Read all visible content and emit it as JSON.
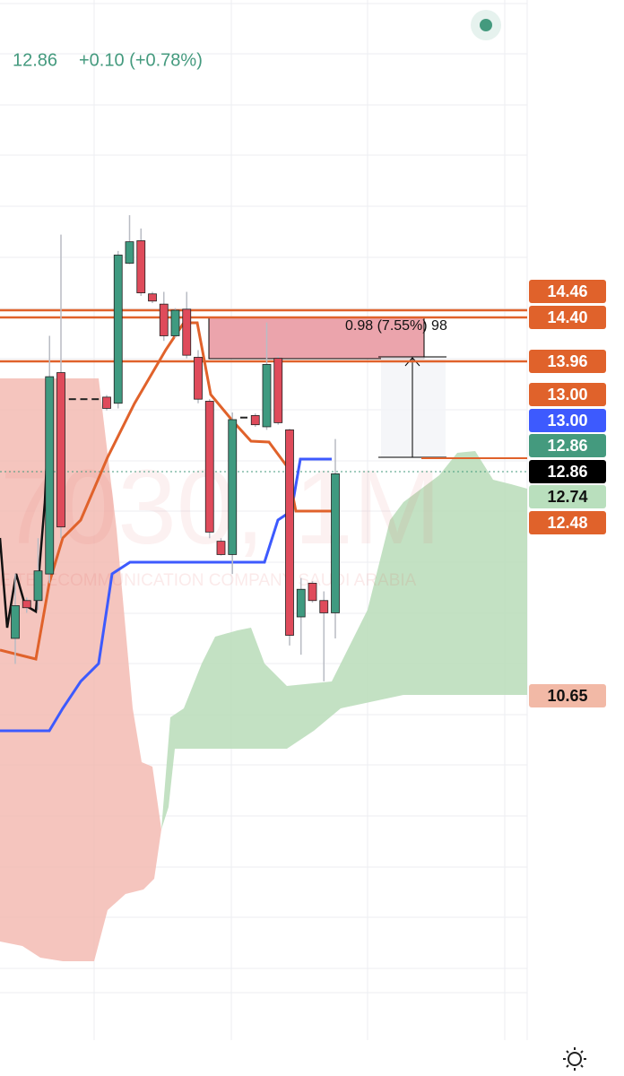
{
  "header": {
    "price": "12.86",
    "change": "+0.10 (+0.78%)"
  },
  "watermark": {
    "symbol": "7030, 1M",
    "company": "MOBILE TELECOMMUNICATION COMPANY SAUDI ARABIA"
  },
  "measure": {
    "label": "0.98 (7.55%) 98"
  },
  "price_labels": [
    {
      "label": "14.46",
      "color": "#e0622b"
    },
    {
      "label": "14.40",
      "color": "#e0622b"
    },
    {
      "label": "13.96",
      "color": "#e0622b"
    },
    {
      "label": "13.00",
      "color": "#e0622b"
    },
    {
      "label": "13.00",
      "color": "#3d5afe"
    },
    {
      "label": "12.86",
      "color": "#449a7e"
    },
    {
      "label": "12.86",
      "color": "#000000"
    },
    {
      "label": "12.74",
      "color": "#b9dfbd"
    },
    {
      "label": "12.48",
      "color": "#e0622b"
    },
    {
      "label": "10.65",
      "color": "#f2b9a6"
    }
  ],
  "candles": [
    {
      "o": 11.25,
      "h": 11.88,
      "l": 11.0,
      "c": 11.57
    },
    {
      "o": 11.62,
      "h": 11.65,
      "l": 11.5,
      "c": 11.55
    },
    {
      "o": 11.62,
      "h": 12.23,
      "l": 11.53,
      "c": 11.91
    },
    {
      "o": 11.88,
      "h": 14.21,
      "l": 11.79,
      "c": 13.81
    },
    {
      "o": 13.85,
      "h": 15.2,
      "l": 12.23,
      "c": 12.34
    },
    {
      "o": 13.59,
      "h": 13.59,
      "l": 13.59,
      "c": 13.59
    },
    {
      "o": 13.59,
      "h": 13.59,
      "l": 13.59,
      "c": 13.59
    },
    {
      "o": 13.59,
      "h": 13.59,
      "l": 13.59,
      "c": 13.59
    },
    {
      "o": 13.61,
      "h": 13.63,
      "l": 13.48,
      "c": 13.5
    },
    {
      "o": 13.55,
      "h": 15.04,
      "l": 13.5,
      "c": 15.0
    },
    {
      "o": 14.92,
      "h": 15.39,
      "l": 14.91,
      "c": 15.13
    },
    {
      "o": 15.14,
      "h": 15.26,
      "l": 14.6,
      "c": 14.63
    },
    {
      "o": 14.62,
      "h": 14.64,
      "l": 14.53,
      "c": 14.55
    },
    {
      "o": 14.52,
      "h": 14.64,
      "l": 14.16,
      "c": 14.21
    },
    {
      "o": 14.21,
      "h": 14.48,
      "l": 14.19,
      "c": 14.46
    },
    {
      "o": 14.47,
      "h": 14.64,
      "l": 13.99,
      "c": 14.02
    },
    {
      "o": 14.0,
      "h": 14.07,
      "l": 13.55,
      "c": 13.59
    },
    {
      "o": 13.57,
      "h": 13.59,
      "l": 12.23,
      "c": 12.29
    },
    {
      "o": 12.2,
      "h": 12.23,
      "l": 12.06,
      "c": 12.07
    },
    {
      "o": 12.07,
      "h": 13.46,
      "l": 11.88,
      "c": 13.39
    },
    {
      "o": 13.41,
      "h": 13.41,
      "l": 13.41,
      "c": 13.41
    },
    {
      "o": 13.43,
      "h": 13.45,
      "l": 13.32,
      "c": 13.34
    },
    {
      "o": 13.32,
      "h": 14.34,
      "l": 13.29,
      "c": 13.93
    },
    {
      "o": 13.99,
      "h": 14.01,
      "l": 13.34,
      "c": 13.36
    },
    {
      "o": 13.29,
      "h": 13.3,
      "l": 11.18,
      "c": 11.28
    },
    {
      "o": 11.46,
      "h": 11.84,
      "l": 11.09,
      "c": 11.73
    },
    {
      "o": 11.79,
      "h": 11.81,
      "l": 11.6,
      "c": 11.62
    },
    {
      "o": 11.62,
      "h": 11.71,
      "l": 10.83,
      "c": 11.5
    },
    {
      "o": 11.5,
      "h": 13.2,
      "l": 11.25,
      "c": 12.86
    }
  ]
}
